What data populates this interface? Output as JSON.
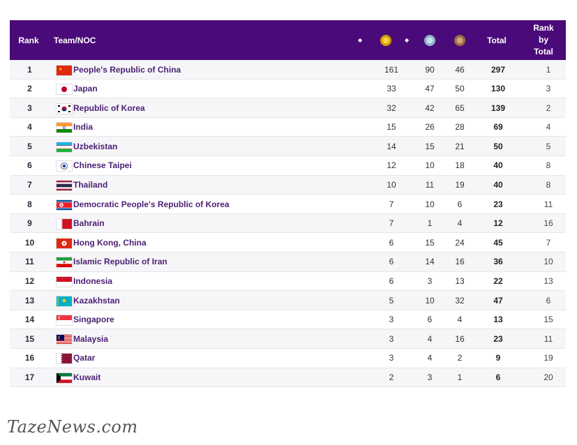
{
  "header": {
    "rank": "Rank",
    "team": "Team/NOC",
    "sort_icon": "◆",
    "total": "Total",
    "rank_by_total": [
      "Rank",
      "by",
      "Total"
    ],
    "medal_colors": {
      "gold": "#e0b10f",
      "silver": "#9ec3d6",
      "bronze": "#b98a5e"
    }
  },
  "rows": [
    {
      "rank": "1",
      "name": "People's Republic of China",
      "gold": "161",
      "silver": "90",
      "bronze": "46",
      "total": "297",
      "rbt": "1",
      "flag": "cn"
    },
    {
      "rank": "2",
      "name": "Japan",
      "gold": "33",
      "silver": "47",
      "bronze": "50",
      "total": "130",
      "rbt": "3",
      "flag": "jp"
    },
    {
      "rank": "3",
      "name": "Republic of Korea",
      "gold": "32",
      "silver": "42",
      "bronze": "65",
      "total": "139",
      "rbt": "2",
      "flag": "kr"
    },
    {
      "rank": "4",
      "name": "India",
      "gold": "15",
      "silver": "26",
      "bronze": "28",
      "total": "69",
      "rbt": "4",
      "flag": "in"
    },
    {
      "rank": "5",
      "name": "Uzbekistan",
      "gold": "14",
      "silver": "15",
      "bronze": "21",
      "total": "50",
      "rbt": "5",
      "flag": "uz"
    },
    {
      "rank": "6",
      "name": "Chinese Taipei",
      "gold": "12",
      "silver": "10",
      "bronze": "18",
      "total": "40",
      "rbt": "8",
      "flag": "tpe"
    },
    {
      "rank": "7",
      "name": "Thailand",
      "gold": "10",
      "silver": "11",
      "bronze": "19",
      "total": "40",
      "rbt": "8",
      "flag": "th"
    },
    {
      "rank": "8",
      "name": "Democratic People's Republic of Korea",
      "gold": "7",
      "silver": "10",
      "bronze": "6",
      "total": "23",
      "rbt": "11",
      "flag": "kp"
    },
    {
      "rank": "9",
      "name": "Bahrain",
      "gold": "7",
      "silver": "1",
      "bronze": "4",
      "total": "12",
      "rbt": "16",
      "flag": "bh"
    },
    {
      "rank": "10",
      "name": "Hong Kong, China",
      "gold": "6",
      "silver": "15",
      "bronze": "24",
      "total": "45",
      "rbt": "7",
      "flag": "hk"
    },
    {
      "rank": "11",
      "name": "Islamic Republic of Iran",
      "gold": "6",
      "silver": "14",
      "bronze": "16",
      "total": "36",
      "rbt": "10",
      "flag": "ir"
    },
    {
      "rank": "12",
      "name": "Indonesia",
      "gold": "6",
      "silver": "3",
      "bronze": "13",
      "total": "22",
      "rbt": "13",
      "flag": "id"
    },
    {
      "rank": "13",
      "name": "Kazakhstan",
      "gold": "5",
      "silver": "10",
      "bronze": "32",
      "total": "47",
      "rbt": "6",
      "flag": "kz"
    },
    {
      "rank": "14",
      "name": "Singapore",
      "gold": "3",
      "silver": "6",
      "bronze": "4",
      "total": "13",
      "rbt": "15",
      "flag": "sg"
    },
    {
      "rank": "15",
      "name": "Malaysia",
      "gold": "3",
      "silver": "4",
      "bronze": "16",
      "total": "23",
      "rbt": "11",
      "flag": "my"
    },
    {
      "rank": "16",
      "name": "Qatar",
      "gold": "3",
      "silver": "4",
      "bronze": "2",
      "total": "9",
      "rbt": "19",
      "flag": "qa"
    },
    {
      "rank": "17",
      "name": "Kuwait",
      "gold": "2",
      "silver": "3",
      "bronze": "1",
      "total": "6",
      "rbt": "20",
      "flag": "kw"
    }
  ],
  "watermark": "TazeNews.com"
}
